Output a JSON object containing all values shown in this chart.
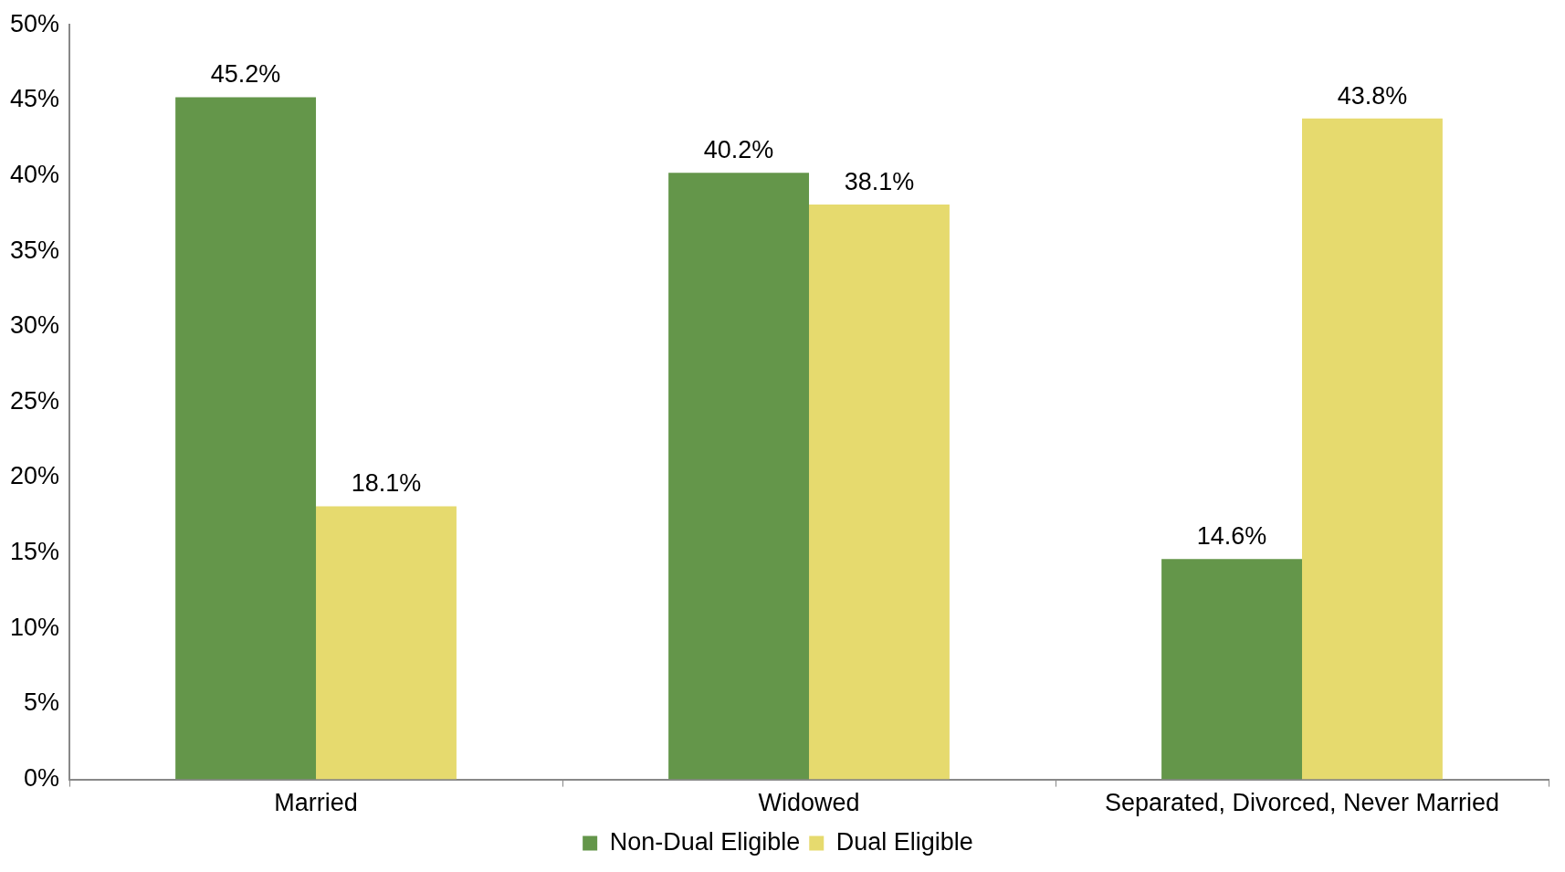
{
  "chart_data": {
    "type": "bar",
    "categories": [
      "Married",
      "Widowed",
      "Separated, Divorced, Never Married"
    ],
    "series": [
      {
        "name": "Non-Dual Eligible",
        "color": "#64964a",
        "values": [
          45.2,
          40.2,
          14.6
        ],
        "value_labels": [
          "45.2%",
          "40.2%",
          "14.6%"
        ]
      },
      {
        "name": "Dual Eligible",
        "color": "#e6da6e",
        "values": [
          18.1,
          38.1,
          43.8
        ],
        "value_labels": [
          "18.1%",
          "38.1%",
          "43.8%"
        ]
      }
    ],
    "ylim": [
      0,
      50
    ],
    "yticks": [
      {
        "value": 0,
        "label": "0%"
      },
      {
        "value": 5,
        "label": "5%"
      },
      {
        "value": 10,
        "label": "10%"
      },
      {
        "value": 15,
        "label": "15%"
      },
      {
        "value": 20,
        "label": "20%"
      },
      {
        "value": 25,
        "label": "25%"
      },
      {
        "value": 30,
        "label": "30%"
      },
      {
        "value": 35,
        "label": "35%"
      },
      {
        "value": 40,
        "label": "40%"
      },
      {
        "value": 45,
        "label": "45%"
      },
      {
        "value": 50,
        "label": "50%"
      }
    ],
    "grid": false,
    "legend": "bottom"
  }
}
